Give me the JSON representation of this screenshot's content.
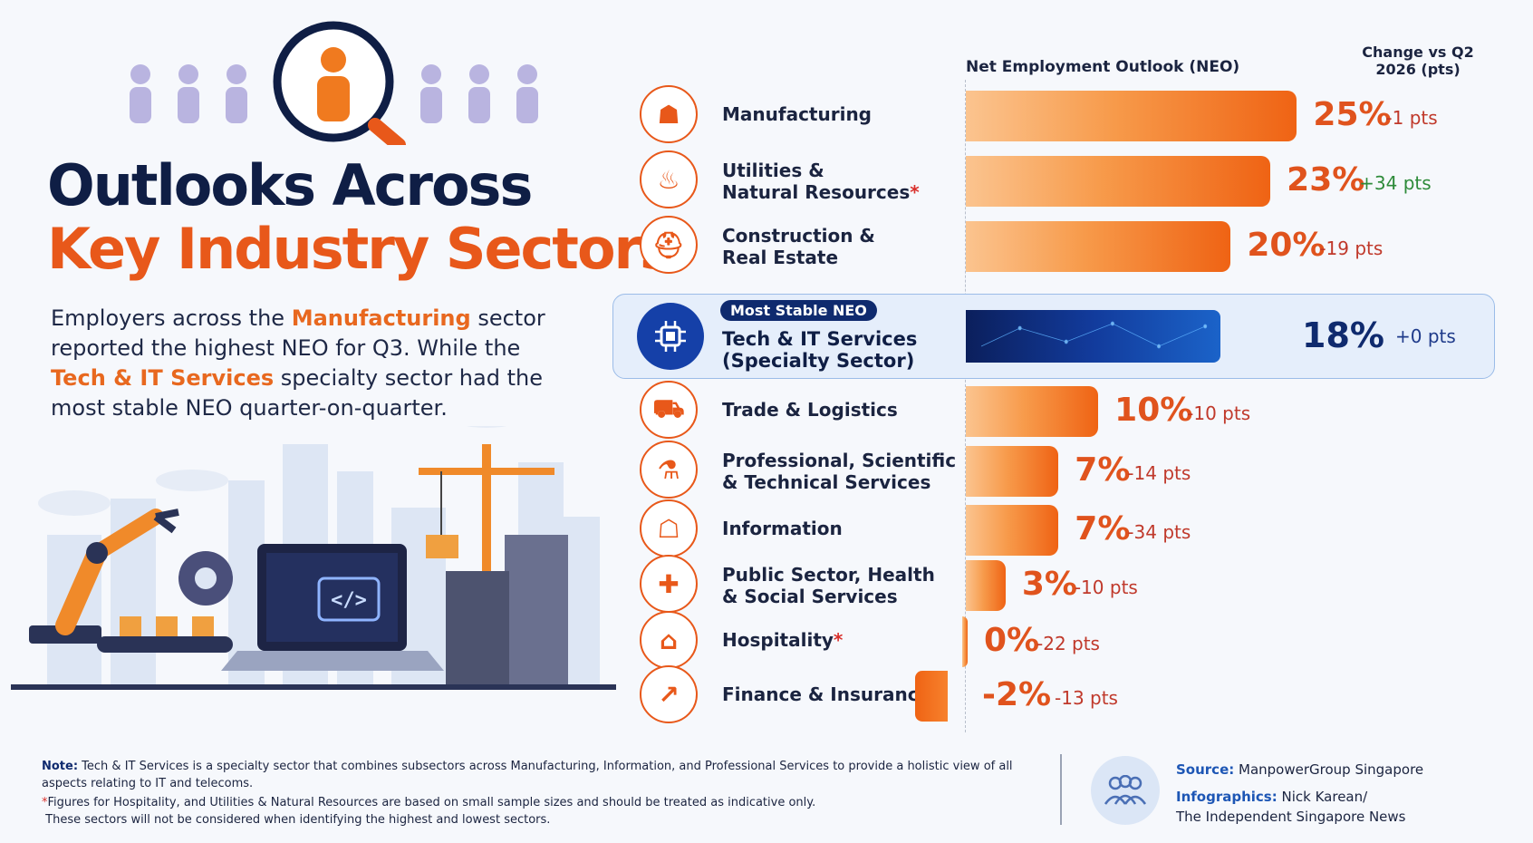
{
  "title_line1": "Outlooks Across",
  "title_line2": "Key Industry Sectors",
  "intro": {
    "part1": "Employers across the ",
    "hl1": "Manufacturing",
    "part2": " sector reported the highest NEO for Q3. While the ",
    "hl2": "Tech & IT Services",
    "part3": " specialty sector had the most stable NEO quarter-on-quarter."
  },
  "colors": {
    "navy": "#0f1e45",
    "orange": "#e8581a",
    "blue": "#1540a8"
  },
  "chart_data": {
    "type": "bar",
    "orientation": "horizontal",
    "value_header": "Net Employment Outlook (NEO)",
    "change_header": "Change vs Q2 2026 (pts)",
    "unit": "%",
    "rows": [
      {
        "label": "Manufacturing",
        "asterisk": "",
        "value": 25,
        "value_label": "25%",
        "change": -1,
        "change_label": "-1 pts",
        "icon": "factory-icon"
      },
      {
        "label": "Utilities &\nNatural Resources",
        "asterisk": "*",
        "value": 23,
        "value_label": "23%",
        "change": 34,
        "change_label": "+34 pts",
        "icon": "flame-water-icon"
      },
      {
        "label": "Construction &\nReal Estate",
        "asterisk": "",
        "value": 20,
        "value_label": "20%",
        "change": -19,
        "change_label": "-19 pts",
        "icon": "hard-hat-icon"
      },
      {
        "label": "Tech & IT Services\n(Specialty Sector)",
        "asterisk": "",
        "value": 18,
        "value_label": "18%",
        "change": 0,
        "change_label": "+0 pts",
        "icon": "chip-icon",
        "highlight": "Most Stable NEO"
      },
      {
        "label": "Trade & Logistics",
        "asterisk": "",
        "value": 10,
        "value_label": "10%",
        "change": -10,
        "change_label": "-10 pts",
        "icon": "truck-icon"
      },
      {
        "label": "Professional, Scientific\n& Technical Services",
        "asterisk": "",
        "value": 7,
        "value_label": "7%",
        "change": -14,
        "change_label": "-14 pts",
        "icon": "microscope-icon"
      },
      {
        "label": "Information",
        "asterisk": "",
        "value": 7,
        "value_label": "7%",
        "change": -34,
        "change_label": "-34 pts",
        "icon": "laptop-lock-icon"
      },
      {
        "label": "Public Sector, Health\n& Social Services",
        "asterisk": "",
        "value": 3,
        "value_label": "3%",
        "change": -10,
        "change_label": "-10 pts",
        "icon": "shield-cross-icon"
      },
      {
        "label": "Hospitality",
        "asterisk": "*",
        "value": 0,
        "value_label": "0%",
        "change": -22,
        "change_label": "-22 pts",
        "icon": "cloche-icon"
      },
      {
        "label": "Finance & Insurance",
        "asterisk": "",
        "value": -2,
        "value_label": "-2%",
        "change": -13,
        "change_label": "-13 pts",
        "icon": "growth-chart-icon"
      }
    ]
  },
  "footer": {
    "note_label": "Note:",
    "note_text": " Tech & IT Services is a specialty sector that combines subsectors across Manufacturing, Information, and Professional Services to provide a holistic view of all aspects relating to IT and telecoms.",
    "asterisk_text": "Figures for Hospitality, and Utilities & Natural Resources are based on small sample sizes and should be treated as indicative only.",
    "asterisk_text2": "These sectors will not be considered when identifying the highest and lowest sectors.",
    "source_label": "Source:",
    "source_value": " ManpowerGroup Singapore",
    "credit_label": "Infographics:",
    "credit_value": " Nick Karean/",
    "credit_value2": "The Independent Singapore News"
  }
}
